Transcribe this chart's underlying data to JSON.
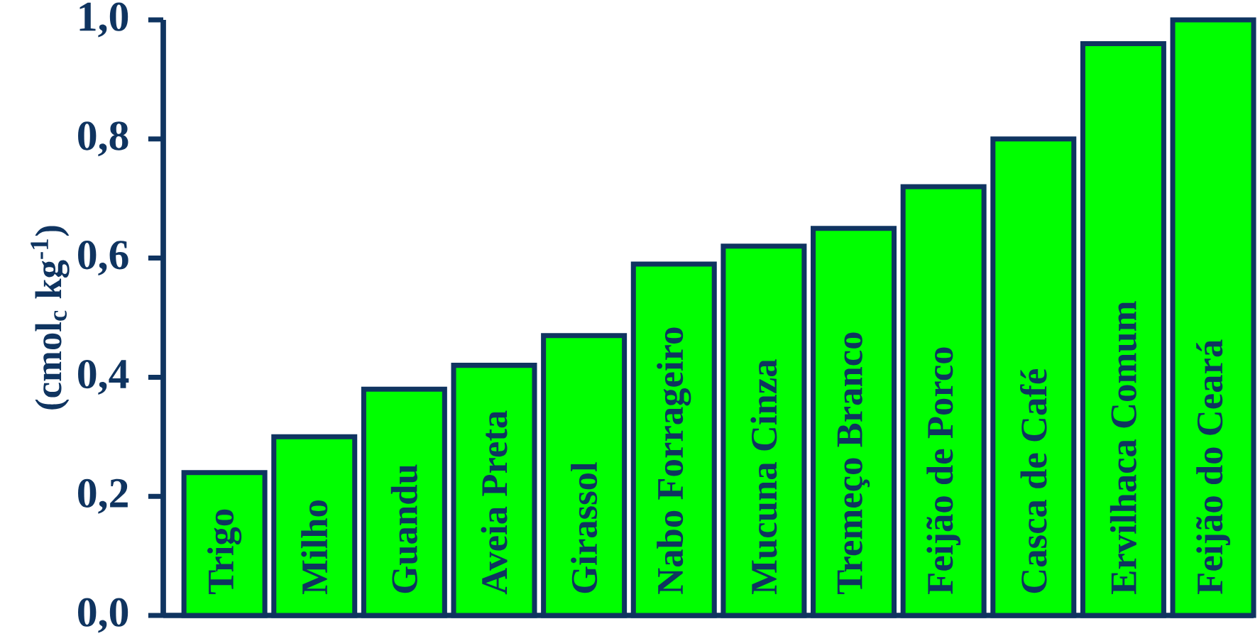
{
  "chart_data": {
    "type": "bar",
    "ylabel": "(cmol$_{c}$ kg$^{-1}$)",
    "categories": [
      "Trigo",
      "Milho",
      "Guandu",
      "Aveia Preta",
      "Girassol",
      "Nabo Forrageiro",
      "Mucuna Cinza",
      "Tremeço Branco",
      "Feijão de Porco",
      "Casca de Café",
      "Ervilhaca Comum",
      "Feijão do Ceará"
    ],
    "values": [
      0.24,
      0.3,
      0.38,
      0.42,
      0.47,
      0.59,
      0.62,
      0.65,
      0.72,
      0.8,
      0.96,
      1.0
    ],
    "color": "#00ff00",
    "ylim": [
      0,
      1.0
    ],
    "yticks": [
      {
        "value": 0,
        "label": "0,0"
      },
      {
        "value": 0.2,
        "label": "0,2"
      },
      {
        "value": 0.4,
        "label": "0,4"
      },
      {
        "value": 0.6,
        "label": "0,6"
      },
      {
        "value": 0.8,
        "label": "0,8"
      },
      {
        "value": 1.0,
        "label": "1,0"
      }
    ]
  }
}
